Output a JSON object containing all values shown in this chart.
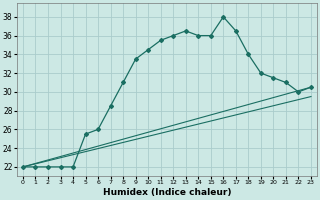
{
  "xlabel": "Humidex (Indice chaleur)",
  "bg_color": "#cce8e4",
  "grid_color": "#aacccc",
  "line_color": "#1a6e62",
  "xlim": [
    -0.5,
    23.5
  ],
  "ylim": [
    21.0,
    39.5
  ],
  "xticks": [
    0,
    1,
    2,
    3,
    4,
    5,
    6,
    7,
    8,
    9,
    10,
    11,
    12,
    13,
    14,
    15,
    16,
    17,
    18,
    19,
    20,
    21,
    22,
    23
  ],
  "yticks": [
    22,
    24,
    26,
    28,
    30,
    32,
    34,
    36,
    38
  ],
  "curve1_x": [
    0,
    1,
    2,
    3,
    4,
    5,
    6,
    7,
    8,
    9,
    10,
    11,
    12,
    13,
    14,
    15,
    16,
    17,
    18,
    19,
    20,
    21,
    22,
    23
  ],
  "curve1_y": [
    22,
    22,
    22,
    22,
    22,
    25.5,
    26,
    28.5,
    31,
    33.5,
    34.5,
    35.5,
    36,
    36.5,
    36,
    36,
    38,
    36.5,
    34,
    32,
    31.5,
    31,
    30,
    30.5
  ],
  "curve2_x": [
    0,
    23
  ],
  "curve2_y": [
    22,
    30.5
  ],
  "curve3_x": [
    0,
    23
  ],
  "curve3_y": [
    22,
    29.5
  ]
}
